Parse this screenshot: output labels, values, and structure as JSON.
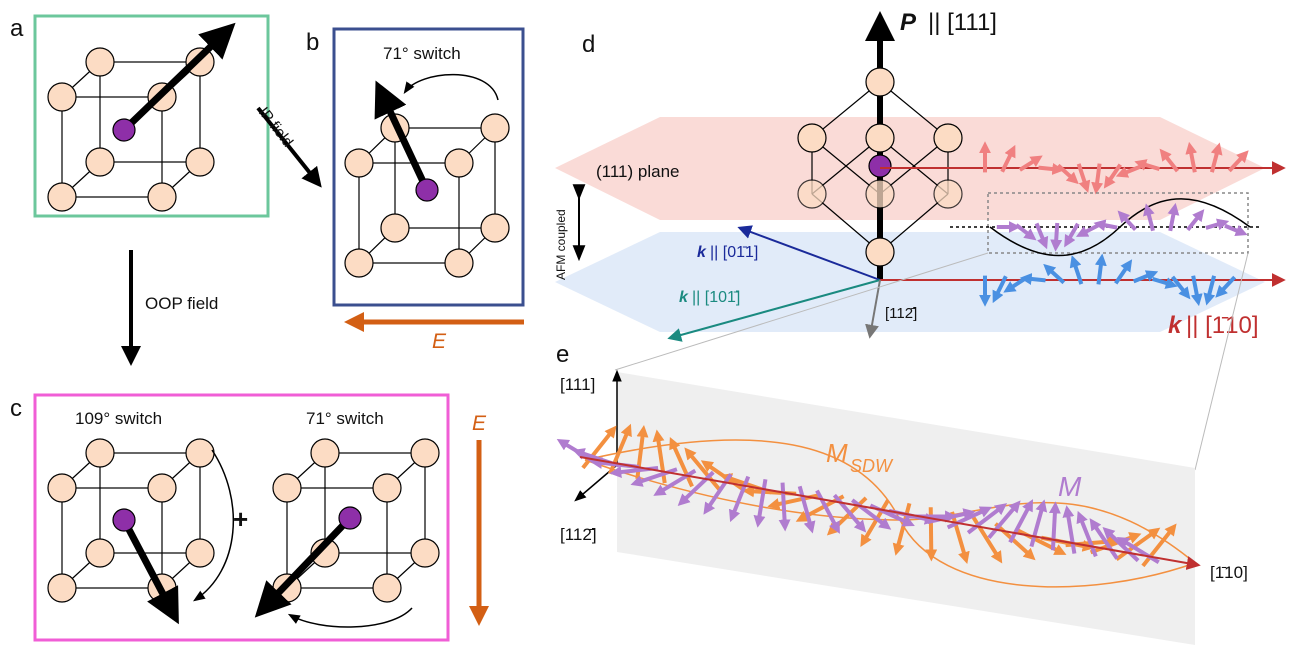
{
  "panels": {
    "a": {
      "letter": "a"
    },
    "b": {
      "letter": "b",
      "switch_label": "71° switch",
      "arrow_label": "IP field",
      "field_label": "E"
    },
    "c": {
      "letter": "c",
      "switch1_label": "109° switch",
      "plus": "+",
      "switch2_label": "71° switch",
      "field_label": "E"
    },
    "oop_label": "OOP field",
    "d": {
      "letter": "d",
      "polarization_label_p": "P",
      "polarization_label_rest": "|| [111]",
      "plane_label": "(111) plane",
      "afm_label": "AFM coupled",
      "k1_bold": "k",
      "k1_rest": "|| [01̄1]",
      "k2_bold": "k",
      "k2_rest": "|| [101̄]",
      "k3_bold": "k",
      "k3_rest": "|| [1̄10]",
      "dir_112": "[112̄]"
    },
    "e": {
      "letter": "e",
      "axis_111": "[111]",
      "axis_112": "[112̄]",
      "axis_110": "[1̄10]",
      "msdw_label": "M",
      "msdw_sub": "SDW",
      "m_label": "M"
    }
  },
  "colors": {
    "panel_a_border": "#6cc79c",
    "panel_b_border": "#3b4f8f",
    "panel_c_border": "#f05ed6",
    "atom_fill": "#fcdcc4",
    "center_atom": "#8e2fa8",
    "field_arrow": "#d35f14",
    "red_arrows": "#f08080",
    "purple_arrows": "#b07ccf",
    "blue_arrows": "#4a90e2",
    "k1": "#1a2a9a",
    "k2": "#1a8a80",
    "k3": "#c03030",
    "msdw": "#f39040"
  }
}
